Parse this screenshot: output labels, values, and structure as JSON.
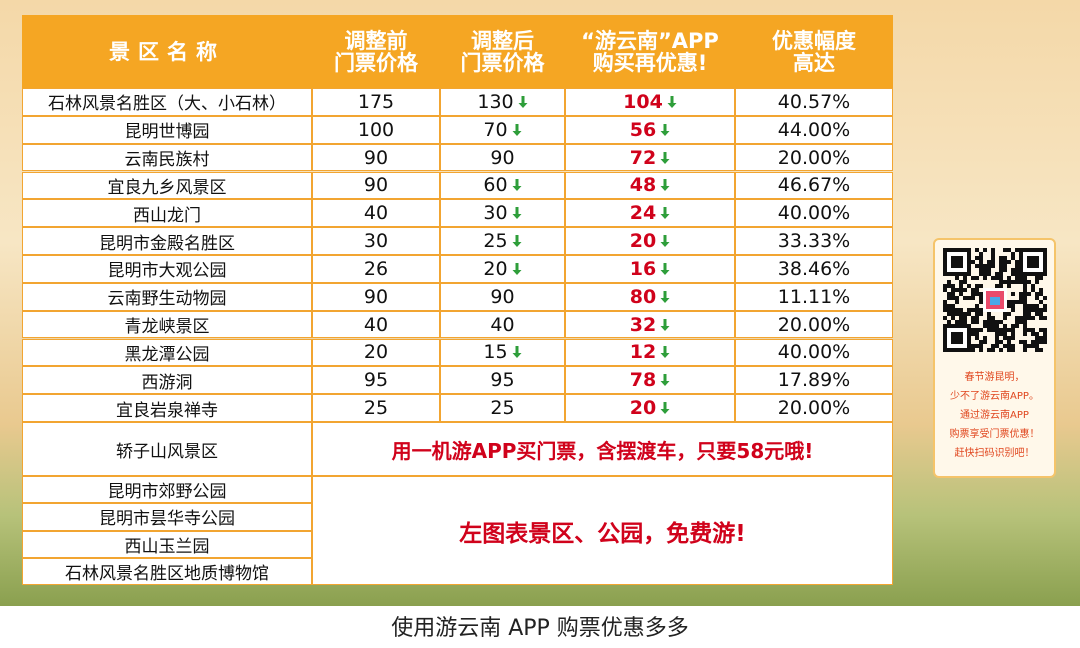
{
  "table": {
    "header": [
      [
        "景区名称"
      ],
      [
        "调整前",
        "门票价格"
      ],
      [
        "调整后",
        "门票价格"
      ],
      [
        "“游云南”APP",
        "购买再优惠!"
      ],
      [
        "优惠幅度",
        "高达"
      ]
    ],
    "rows": [
      [
        "石林风景名胜区（大、小石林）",
        "175",
        "130",
        "104",
        "40.57%"
      ],
      [
        "昆明世博园",
        "100",
        "70",
        "56",
        "44.00%"
      ],
      [
        "云南民族村",
        "90",
        "90",
        "72",
        "20.00%"
      ],
      [
        "宜良九乡风景区",
        "90",
        "60",
        "48",
        "46.67%"
      ],
      [
        "西山龙门",
        "40",
        "30",
        "24",
        "40.00%"
      ],
      [
        "昆明市金殿名胜区",
        "30",
        "25",
        "20",
        "33.33%"
      ],
      [
        "昆明市大观公园",
        "26",
        "20",
        "16",
        "38.46%"
      ],
      [
        "云南野生动物园",
        "90",
        "90",
        "80",
        "11.11%"
      ],
      [
        "青龙峡景区",
        "40",
        "40",
        "32",
        "20.00%"
      ],
      [
        "黑龙潭公园",
        "20",
        "15",
        "12",
        "40.00%"
      ],
      [
        "西游洞",
        "95",
        "95",
        "78",
        "17.89%"
      ],
      [
        "宜良岩泉禅寺",
        "25",
        "25",
        "20",
        "20.00%"
      ]
    ],
    "special": {
      "name": "轿子山风景区",
      "note": "用一机游APP买门票，含摆渡车，只要58元哦!"
    },
    "free": {
      "names": [
        "昆明市郊野公园",
        "昆明市昙华寺公园",
        "西山玉兰园",
        "石林风景名胜区地质博物馆"
      ],
      "note": "左图表景区、公园，免费游!"
    }
  },
  "sidebar": {
    "lines": [
      "春节游昆明，",
      "少不了游云南APP。",
      "通过游云南APP",
      "购票享受门票优惠！",
      "赶快扫码识别吧！"
    ]
  },
  "caption": "使用游云南 APP 购票优惠多多"
}
